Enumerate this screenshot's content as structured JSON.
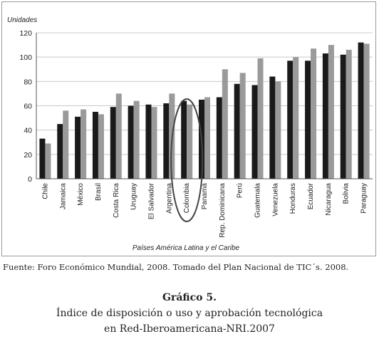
{
  "chart_data": {
    "type": "bar",
    "ylabel": "Unidades",
    "xlabel": "Países América Latina y el Caribe",
    "ylim": [
      0,
      120
    ],
    "yticks": [
      0,
      20,
      40,
      60,
      80,
      100,
      120
    ],
    "grid": true,
    "categories": [
      "Chile",
      "Jamaica",
      "México",
      "Brasil",
      "Costa Rica",
      "Uruguay",
      "El Salvador",
      "Argentina",
      "Colombia",
      "Panamá",
      "Rep. Dominicana",
      "Perú",
      "Guatemala",
      "Venezuela",
      "Honduras",
      "Ecuador",
      "Nicaragua",
      "Bolivia",
      "Paraguay"
    ],
    "series": [
      {
        "values": [
          33,
          45,
          51,
          55,
          59,
          60,
          61,
          62,
          64,
          65,
          67,
          78,
          77,
          84,
          97,
          97,
          103,
          102,
          112
        ]
      },
      {
        "values": [
          29,
          56,
          57,
          53,
          70,
          64,
          59,
          70,
          61,
          67,
          90,
          87,
          99,
          80,
          100,
          107,
          110,
          106,
          111
        ]
      }
    ],
    "series_colors": [
      "#1a1a1a",
      "#9a9a9a"
    ],
    "highlight": "Colombia"
  },
  "source": {
    "label": "Fuente:",
    "text": " Foro Económico Mundial, 2008. Tomado del Plan Nacional de TIC´s. 2008."
  },
  "caption": {
    "number": "Gráfico 5.",
    "line1": "Índice de disposición o uso y aprobación tecnológica",
    "line2": "en Red-Iberoamericana-NRI.2007"
  }
}
